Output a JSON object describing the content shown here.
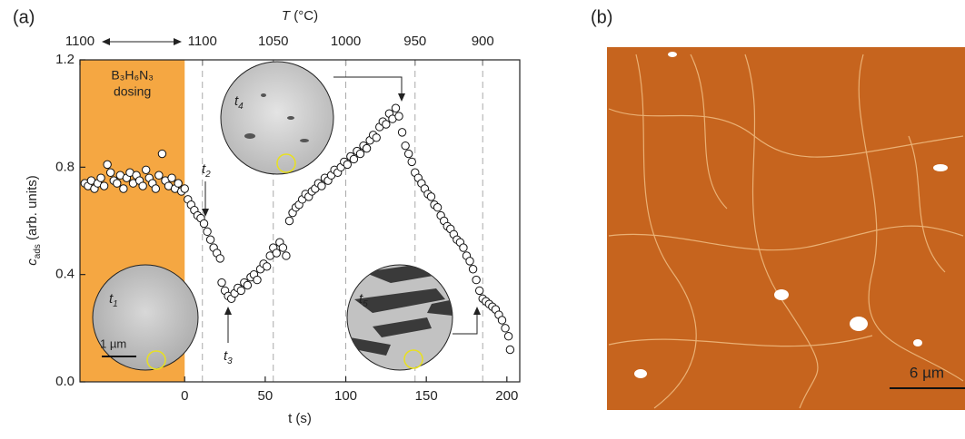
{
  "chart_data": {
    "type": "scatter",
    "panel_labels": [
      "(a)",
      "(b)"
    ],
    "xlabel": "t (s)",
    "ylabel": {
      "main": "c",
      "sub": "ads",
      "rest": " (arb. units)"
    },
    "x2label": {
      "main": "T",
      "rest": " (°C)"
    },
    "xlim": [
      -65,
      208
    ],
    "ylim": [
      0,
      1.2
    ],
    "xticks": [
      0,
      50,
      100,
      150,
      200
    ],
    "yticks": [
      {
        "value": 0,
        "label": "0.0"
      },
      0.4,
      0.8,
      1.2
    ],
    "x2ticks": [
      {
        "value": -65,
        "label": "1100"
      },
      {
        "value": 11,
        "label": "1100"
      },
      {
        "value": 55,
        "label": "1050"
      },
      {
        "value": 100,
        "label": "1000"
      },
      {
        "value": 143,
        "label": "950"
      },
      {
        "value": 185,
        "label": "900"
      }
    ],
    "shade": {
      "range": [
        -65,
        0
      ],
      "color": "#f5a742",
      "label": "B₃H₆N₃",
      "label2": "dosing"
    },
    "annotations": [
      {
        "text": "t",
        "sub": "1"
      },
      {
        "text": "t",
        "sub": "2"
      },
      {
        "text": "t",
        "sub": "3"
      },
      {
        "text": "t",
        "sub": "4"
      },
      {
        "text": "t",
        "sub": "5"
      }
    ],
    "inset_scale": "1 µm",
    "image_scale": "6 µm",
    "x": [
      -62,
      -60,
      -58,
      -56,
      -54,
      -52,
      -50,
      -48,
      -46,
      -44,
      -42,
      -40,
      -38,
      -36,
      -34,
      -32,
      -30,
      -28,
      -26,
      -24,
      -22,
      -20,
      -18,
      -16,
      -14,
      -12,
      -10,
      -8,
      -6,
      -4,
      -2,
      0,
      2,
      4,
      6,
      8,
      10,
      12,
      14,
      16,
      18,
      20,
      22,
      23,
      25,
      27,
      29,
      31,
      33,
      35,
      37,
      39,
      41,
      43,
      45,
      47,
      49,
      51,
      53,
      55,
      57,
      59,
      61,
      63,
      65,
      67,
      69,
      71,
      73,
      75,
      77,
      79,
      81,
      83,
      85,
      87,
      89,
      91,
      93,
      95,
      97,
      99,
      101,
      103,
      105,
      107,
      109,
      111,
      113,
      115,
      117,
      119,
      121,
      123,
      125,
      127,
      129,
      131,
      133,
      135,
      137,
      139,
      141,
      143,
      145,
      147,
      149,
      151,
      153,
      155,
      157,
      159,
      161,
      163,
      165,
      167,
      169,
      171,
      173,
      175,
      177,
      179,
      181,
      183,
      185,
      187,
      189,
      191,
      193,
      195,
      197,
      199,
      201,
      202
    ],
    "series": [
      {
        "color": "#ffffff",
        "values": [
          0.74,
          0.73,
          0.75,
          0.72,
          0.74,
          0.76,
          0.73,
          0.81,
          0.78,
          0.75,
          0.74,
          0.77,
          0.72,
          0.76,
          0.78,
          0.74,
          0.77,
          0.75,
          0.73,
          0.79,
          0.76,
          0.74,
          0.72,
          0.77,
          0.85,
          0.75,
          0.73,
          0.76,
          0.72,
          0.74,
          0.71,
          0.72,
          0.68,
          0.66,
          0.64,
          0.62,
          0.61,
          0.59,
          0.56,
          0.53,
          0.5,
          0.48,
          0.46,
          0.37,
          0.34,
          0.32,
          0.31,
          0.33,
          0.35,
          0.34,
          0.37,
          0.36,
          0.39,
          0.4,
          0.38,
          0.42,
          0.44,
          0.43,
          0.47,
          0.5,
          0.48,
          0.52,
          0.5,
          0.47,
          0.6,
          0.63,
          0.65,
          0.66,
          0.68,
          0.7,
          0.69,
          0.71,
          0.72,
          0.74,
          0.73,
          0.76,
          0.75,
          0.77,
          0.79,
          0.78,
          0.8,
          0.82,
          0.81,
          0.84,
          0.83,
          0.86,
          0.85,
          0.88,
          0.87,
          0.9,
          0.92,
          0.91,
          0.95,
          0.97,
          0.96,
          1.0,
          0.98,
          1.02,
          0.99,
          0.93,
          0.88,
          0.85,
          0.82,
          0.78,
          0.76,
          0.74,
          0.72,
          0.7,
          0.69,
          0.66,
          0.65,
          0.62,
          0.6,
          0.58,
          0.57,
          0.55,
          0.53,
          0.52,
          0.5,
          0.47,
          0.45,
          0.42,
          0.38,
          0.34,
          0.31,
          0.3,
          0.29,
          0.28,
          0.27,
          0.25,
          0.23,
          0.2,
          0.17,
          0.12
        ]
      }
    ]
  }
}
